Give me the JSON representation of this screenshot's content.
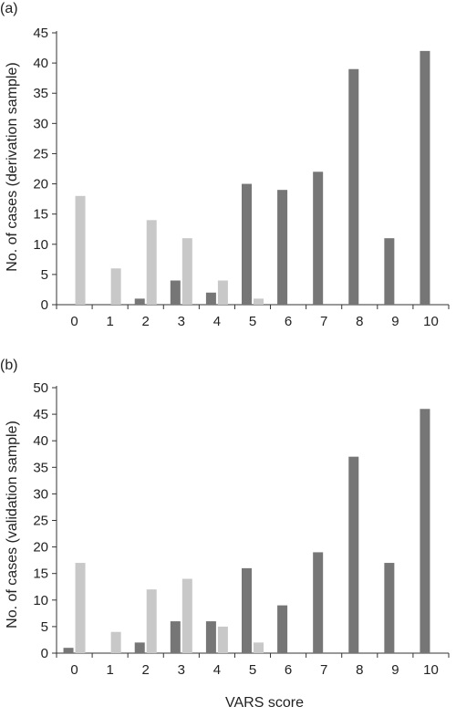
{
  "panels": [
    {
      "label": "(a)",
      "ylabel": "No. of cases (derivation sample)"
    },
    {
      "label": "(b)",
      "ylabel": "No. of cases (validation sample)"
    }
  ],
  "xlabel": "VARS score",
  "colors": {
    "dark": "#767676",
    "light": "#c8c8c8",
    "axis": "#333333"
  },
  "chart_data": [
    {
      "type": "bar",
      "title": "",
      "panel_label": "(a)",
      "xlabel": "",
      "ylabel": "No. of cases (derivation sample)",
      "categories": [
        "0",
        "1",
        "2",
        "3",
        "4",
        "5",
        "6",
        "7",
        "8",
        "9",
        "10"
      ],
      "ylim": [
        0,
        45
      ],
      "yticks": [
        0,
        5,
        10,
        15,
        20,
        25,
        30,
        35,
        40,
        45
      ],
      "grid": false,
      "legend": "none",
      "series": [
        {
          "values": [
            0,
            0,
            1,
            4,
            2,
            20,
            19,
            22,
            39,
            11,
            42
          ]
        },
        {
          "values": [
            18,
            6,
            14,
            11,
            4,
            1,
            0,
            0,
            0,
            0,
            0
          ]
        }
      ]
    },
    {
      "type": "bar",
      "title": "",
      "panel_label": "(b)",
      "xlabel": "VARS score",
      "ylabel": "No. of cases (validation sample)",
      "categories": [
        "0",
        "1",
        "2",
        "3",
        "4",
        "5",
        "6",
        "7",
        "8",
        "9",
        "10"
      ],
      "ylim": [
        0,
        50
      ],
      "yticks": [
        0,
        5,
        10,
        15,
        20,
        25,
        30,
        35,
        40,
        45,
        50
      ],
      "grid": false,
      "legend": "none",
      "series": [
        {
          "values": [
            1,
            0,
            2,
            6,
            6,
            16,
            9,
            19,
            37,
            17,
            46
          ]
        },
        {
          "values": [
            17,
            4,
            12,
            14,
            5,
            2,
            0,
            0,
            0,
            0,
            0
          ]
        }
      ]
    }
  ]
}
